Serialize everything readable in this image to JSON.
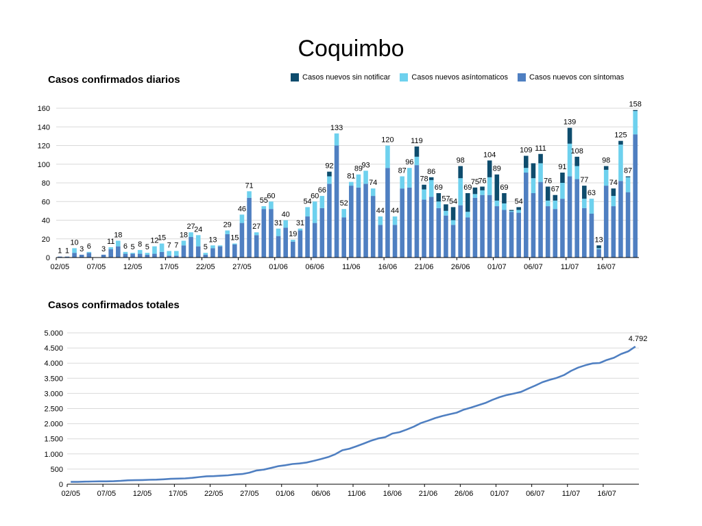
{
  "title": "Coquimbo",
  "chart_data": [
    {
      "type": "bar",
      "stacked": true,
      "title": "Casos confirmados diarios",
      "legend_position": "top-right",
      "ylim": [
        0,
        160
      ],
      "yticks": [
        0,
        20,
        40,
        60,
        80,
        100,
        120,
        140,
        160
      ],
      "tick_labels": [
        "02/05",
        "07/05",
        "12/05",
        "17/05",
        "22/05",
        "27/05",
        "01/06",
        "06/06",
        "11/06",
        "16/06",
        "21/06",
        "26/06",
        "01/07",
        "06/07",
        "11/07",
        "16/07"
      ],
      "colors": {
        "sintomas": "#4f7fc1",
        "asintomaticos": "#6ed1ee",
        "sin_notificar": "#0e4c6d"
      },
      "series": [
        {
          "name": "Casos nuevos sin notificar",
          "key": "sin_notificar"
        },
        {
          "name": "Casos nuevos asíntomaticos",
          "key": "asintomaticos"
        },
        {
          "name": "Casos nuevos con síntomas",
          "key": "sintomas"
        }
      ],
      "days": [
        {
          "date": "02/05",
          "total": 1,
          "s": 1,
          "a": 0,
          "n": 0
        },
        {
          "date": "03/05",
          "total": 1,
          "s": 1,
          "a": 0,
          "n": 0
        },
        {
          "date": "04/05",
          "total": 10,
          "s": 5,
          "a": 5,
          "n": 0
        },
        {
          "date": "05/05",
          "total": 3,
          "s": 3,
          "a": 0,
          "n": 0
        },
        {
          "date": "06/05",
          "total": 6,
          "s": 5,
          "a": 1,
          "n": 0
        },
        {
          "date": "07/05",
          "total": 0,
          "s": 0,
          "a": 0,
          "n": 0
        },
        {
          "date": "08/05",
          "total": 3,
          "s": 3,
          "a": 0,
          "n": 0
        },
        {
          "date": "09/05",
          "total": 11,
          "s": 9,
          "a": 2,
          "n": 0
        },
        {
          "date": "10/05",
          "total": 18,
          "s": 12,
          "a": 6,
          "n": 0
        },
        {
          "date": "11/05",
          "total": 6,
          "s": 4,
          "a": 2,
          "n": 0
        },
        {
          "date": "12/05",
          "total": 5,
          "s": 4,
          "a": 1,
          "n": 0
        },
        {
          "date": "13/05",
          "total": 8,
          "s": 4,
          "a": 4,
          "n": 0
        },
        {
          "date": "14/05",
          "total": 5,
          "s": 3,
          "a": 2,
          "n": 0
        },
        {
          "date": "15/05",
          "total": 12,
          "s": 4,
          "a": 8,
          "n": 0
        },
        {
          "date": "16/05",
          "total": 15,
          "s": 6,
          "a": 9,
          "n": 0
        },
        {
          "date": "17/05",
          "total": 7,
          "s": 2,
          "a": 5,
          "n": 0
        },
        {
          "date": "18/05",
          "total": 7,
          "s": 2,
          "a": 5,
          "n": 0
        },
        {
          "date": "19/05",
          "total": 18,
          "s": 13,
          "a": 5,
          "n": 0
        },
        {
          "date": "20/05",
          "total": 27,
          "s": 22,
          "a": 5,
          "n": 0
        },
        {
          "date": "21/05",
          "total": 24,
          "s": 12,
          "a": 12,
          "n": 0
        },
        {
          "date": "22/05",
          "total": 5,
          "s": 3,
          "a": 2,
          "n": 0
        },
        {
          "date": "23/05",
          "total": 13,
          "s": 10,
          "a": 3,
          "n": 0
        },
        {
          "date": "24/05",
          "total": 13,
          "s": 12,
          "a": 1,
          "n": 0
        },
        {
          "date": "25/05",
          "total": 29,
          "s": 25,
          "a": 4,
          "n": 0
        },
        {
          "date": "26/05",
          "total": 15,
          "s": 14,
          "a": 1,
          "n": 0
        },
        {
          "date": "27/05",
          "total": 46,
          "s": 37,
          "a": 9,
          "n": 0
        },
        {
          "date": "28/05",
          "total": 71,
          "s": 64,
          "a": 7,
          "n": 0
        },
        {
          "date": "29/05",
          "total": 27,
          "s": 24,
          "a": 3,
          "n": 0
        },
        {
          "date": "30/05",
          "total": 55,
          "s": 52,
          "a": 3,
          "n": 0
        },
        {
          "date": "31/05",
          "total": 60,
          "s": 52,
          "a": 8,
          "n": 0
        },
        {
          "date": "01/06",
          "total": 31,
          "s": 23,
          "a": 8,
          "n": 0
        },
        {
          "date": "02/06",
          "total": 40,
          "s": 32,
          "a": 8,
          "n": 0
        },
        {
          "date": "03/06",
          "total": 19,
          "s": 17,
          "a": 2,
          "n": 0
        },
        {
          "date": "04/06",
          "total": 31,
          "s": 29,
          "a": 2,
          "n": 0
        },
        {
          "date": "05/06",
          "total": 54,
          "s": 44,
          "a": 10,
          "n": 0
        },
        {
          "date": "06/06",
          "total": 60,
          "s": 37,
          "a": 23,
          "n": 0
        },
        {
          "date": "07/06",
          "total": 66,
          "s": 53,
          "a": 13,
          "n": 0
        },
        {
          "date": "08/06",
          "total": 92,
          "s": 79,
          "a": 8,
          "n": 5
        },
        {
          "date": "09/06",
          "total": 133,
          "s": 120,
          "a": 13,
          "n": 0
        },
        {
          "date": "10/06",
          "total": 52,
          "s": 43,
          "a": 9,
          "n": 0
        },
        {
          "date": "11/06",
          "total": 81,
          "s": 77,
          "a": 4,
          "n": 0
        },
        {
          "date": "12/06",
          "total": 89,
          "s": 75,
          "a": 14,
          "n": 0
        },
        {
          "date": "13/06",
          "total": 93,
          "s": 79,
          "a": 14,
          "n": 0
        },
        {
          "date": "14/06",
          "total": 74,
          "s": 66,
          "a": 8,
          "n": 0
        },
        {
          "date": "15/06",
          "total": 44,
          "s": 35,
          "a": 9,
          "n": 0
        },
        {
          "date": "16/06",
          "total": 120,
          "s": 96,
          "a": 24,
          "n": 0
        },
        {
          "date": "17/06",
          "total": 44,
          "s": 35,
          "a": 9,
          "n": 0
        },
        {
          "date": "18/06",
          "total": 87,
          "s": 74,
          "a": 13,
          "n": 0
        },
        {
          "date": "19/06",
          "total": 96,
          "s": 75,
          "a": 21,
          "n": 0
        },
        {
          "date": "20/06",
          "total": 119,
          "s": 99,
          "a": 9,
          "n": 11
        },
        {
          "date": "21/06",
          "total": 78,
          "s": 62,
          "a": 11,
          "n": 5
        },
        {
          "date": "22/06",
          "total": 86,
          "s": 65,
          "a": 18,
          "n": 3
        },
        {
          "date": "23/06",
          "total": 69,
          "s": 53,
          "a": 7,
          "n": 9
        },
        {
          "date": "24/06",
          "total": 57,
          "s": 45,
          "a": 5,
          "n": 7
        },
        {
          "date": "25/06",
          "total": 54,
          "s": 35,
          "a": 5,
          "n": 14
        },
        {
          "date": "26/06",
          "total": 98,
          "s": 56,
          "a": 29,
          "n": 13
        },
        {
          "date": "27/06",
          "total": 69,
          "s": 43,
          "a": 6,
          "n": 20
        },
        {
          "date": "28/06",
          "total": 75,
          "s": 64,
          "a": 4,
          "n": 7
        },
        {
          "date": "29/06",
          "total": 76,
          "s": 67,
          "a": 5,
          "n": 4
        },
        {
          "date": "30/06",
          "total": 104,
          "s": 67,
          "a": 19,
          "n": 18
        },
        {
          "date": "01/07",
          "total": 89,
          "s": 55,
          "a": 6,
          "n": 28
        },
        {
          "date": "02/07",
          "total": 69,
          "s": 51,
          "a": 7,
          "n": 11
        },
        {
          "date": "03/07",
          "total": 51,
          "s": 49,
          "a": 1,
          "n": 1
        },
        {
          "date": "04/07",
          "total": 54,
          "s": 48,
          "a": 3,
          "n": 3
        },
        {
          "date": "05/07",
          "total": 109,
          "s": 91,
          "a": 5,
          "n": 13
        },
        {
          "date": "06/07",
          "total": 101,
          "s": 69,
          "a": 16,
          "n": 16
        },
        {
          "date": "07/07",
          "total": 111,
          "s": 81,
          "a": 20,
          "n": 10
        },
        {
          "date": "08/07",
          "total": 76,
          "s": 55,
          "a": 6,
          "n": 15
        },
        {
          "date": "09/07",
          "total": 67,
          "s": 52,
          "a": 9,
          "n": 6
        },
        {
          "date": "10/07",
          "total": 91,
          "s": 63,
          "a": 17,
          "n": 11
        },
        {
          "date": "11/07",
          "total": 139,
          "s": 87,
          "a": 35,
          "n": 17
        },
        {
          "date": "12/07",
          "total": 108,
          "s": 84,
          "a": 14,
          "n": 10
        },
        {
          "date": "13/07",
          "total": 77,
          "s": 53,
          "a": 10,
          "n": 14
        },
        {
          "date": "14/07",
          "total": 63,
          "s": 47,
          "a": 16,
          "n": 0
        },
        {
          "date": "15/07",
          "total": 13,
          "s": 9,
          "a": 1,
          "n": 3
        },
        {
          "date": "16/07",
          "total": 98,
          "s": 77,
          "a": 17,
          "n": 4
        },
        {
          "date": "17/07",
          "total": 74,
          "s": 55,
          "a": 11,
          "n": 8
        },
        {
          "date": "18/07",
          "total": 125,
          "s": 82,
          "a": 39,
          "n": 4
        },
        {
          "date": "19/07",
          "total": 87,
          "s": 70,
          "a": 16,
          "n": 1
        },
        {
          "date": "20/07",
          "total": 158,
          "s": 132,
          "a": 25,
          "n": 1
        }
      ],
      "labels": {
        "02/05": "1",
        "03/05": "1",
        "04/05": "10",
        "05/05": "3",
        "06/05": "6",
        "08/05": "3",
        "09/05": "11",
        "10/05": "18",
        "11/05": "6",
        "12/05": "5",
        "13/05": "8",
        "14/05": "5",
        "15/05": "12",
        "16/05": "15",
        "17/05": "7",
        "18/05": "7",
        "19/05": "18",
        "20/05": "27",
        "21/05": "24",
        "22/05": "5",
        "23/05": "13",
        "25/05": "29",
        "26/05": "15",
        "27/05": "46",
        "28/05": "71",
        "29/05": "27",
        "30/05": "55",
        "31/05": "60",
        "01/06": "31",
        "02/06": "40",
        "03/06": "19",
        "04/06": "31",
        "05/06": "54",
        "06/06": "60",
        "07/06": "66",
        "08/06": "92",
        "09/06": "133",
        "10/06": "52",
        "11/06": "81",
        "12/06": "89",
        "13/06": "93",
        "14/06": "74",
        "15/06": "44",
        "16/06": "120",
        "17/06": "44",
        "18/06": "87",
        "19/06": "96",
        "20/06": "119",
        "21/06": "78",
        "22/06": "86",
        "23/06": "69",
        "24/06": "57",
        "25/06": "54",
        "26/06": "98",
        "27/06": "69",
        "28/06": "75",
        "29/06": "76",
        "30/06": "104",
        "01/07": "89",
        "02/07": "69",
        "04/07": "54",
        "05/07": "109",
        "07/07": "111",
        "08/07": "76",
        "09/07": "67",
        "10/07": "91",
        "11/07": "139",
        "12/07": "108",
        "13/07": "77",
        "14/07": "63",
        "15/07": "13",
        "16/07": "98",
        "17/07": "74",
        "18/07": "125",
        "19/07": "87",
        "20/07": "158"
      }
    },
    {
      "type": "line",
      "title": "Casos confirmados totales",
      "ylim": [
        0,
        5000
      ],
      "yticks": [
        0,
        500,
        1000,
        1500,
        2000,
        2500,
        3000,
        3500,
        4000,
        4500,
        5000
      ],
      "ytick_labels": [
        "0",
        "500",
        "1.000",
        "1.500",
        "2.000",
        "2.500",
        "3.000",
        "3.500",
        "4.000",
        "4.500",
        "5.000"
      ],
      "tick_labels": [
        "02/05",
        "07/05",
        "12/05",
        "17/05",
        "22/05",
        "27/05",
        "01/06",
        "06/06",
        "11/06",
        "16/06",
        "21/06",
        "26/06",
        "01/07",
        "06/07",
        "11/07",
        "16/07"
      ],
      "line_color": "#4f7fc1",
      "end_label": "4.792",
      "start_value": 75
    }
  ]
}
